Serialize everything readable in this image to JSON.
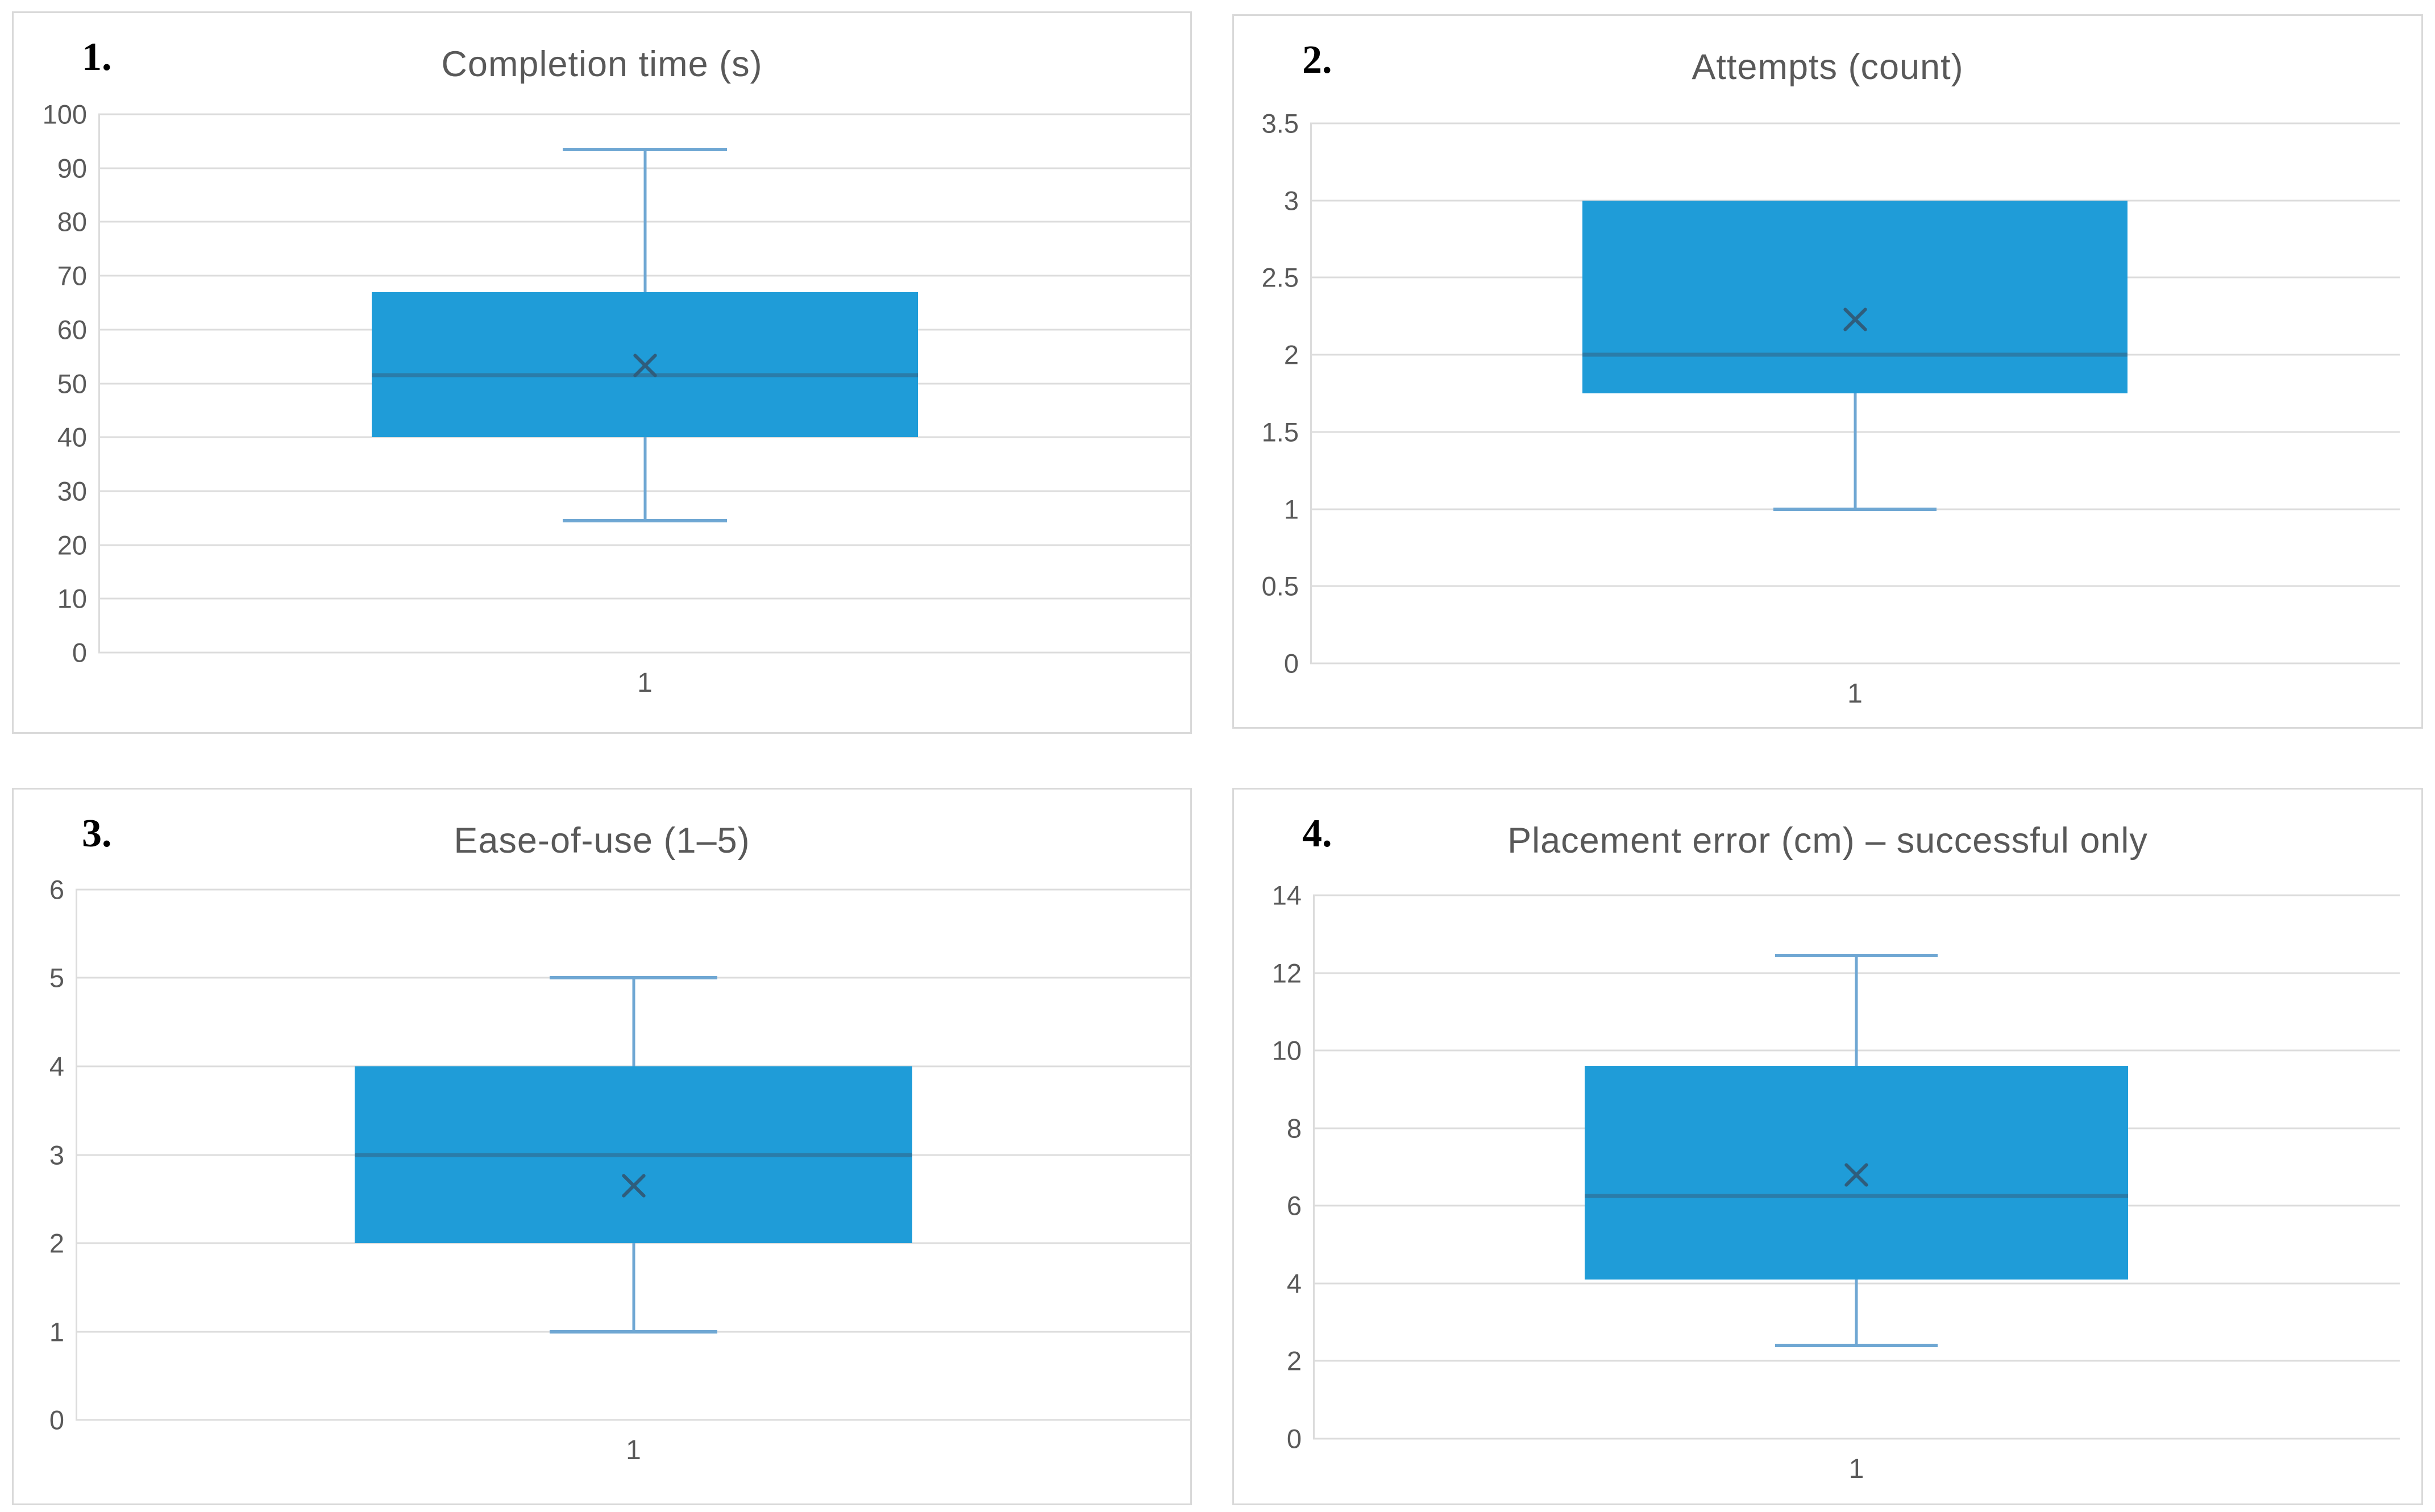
{
  "figure": {
    "background": "#ffffff",
    "colors": {
      "box_fill": "#1f9cd8",
      "whisker": "#6fa7d3",
      "median_line": "#2a7ca9",
      "mean_marker": "#2f5d7c",
      "gridline": "#dcdcdc",
      "panel_border": "#d9d9d9",
      "text": "#595959",
      "corner_label": "#000000"
    }
  },
  "chart_data": [
    {
      "type": "box",
      "corner_label": "1.",
      "title": "Completion time (s)",
      "categories": [
        "1"
      ],
      "x_category": "1",
      "ylim": [
        0,
        100
      ],
      "yticks": [
        "100",
        "90",
        "80",
        "70",
        "60",
        "50",
        "40",
        "30",
        "20",
        "10",
        "0"
      ],
      "grid": true,
      "box": {
        "min": 24.5,
        "q1": 40,
        "median": 51.5,
        "q3": 67,
        "max": 93.5,
        "mean": 53.3
      }
    },
    {
      "type": "box",
      "corner_label": "2.",
      "title": "Attempts (count)",
      "categories": [
        "1"
      ],
      "x_category": "1",
      "ylim": [
        0,
        3.5
      ],
      "yticks": [
        "3.5",
        "3",
        "2.5",
        "2",
        "1.5",
        "1",
        "0.5",
        "0"
      ],
      "grid": true,
      "box": {
        "min": 1,
        "q1": 1.75,
        "median": 2,
        "q3": 3,
        "max": 3,
        "mean": 2.23
      }
    },
    {
      "type": "box",
      "corner_label": "3.",
      "title": "Ease-of-use (1–5)",
      "categories": [
        "1"
      ],
      "x_category": "1",
      "ylim": [
        0,
        6
      ],
      "yticks": [
        "6",
        "5",
        "4",
        "3",
        "2",
        "1",
        "0"
      ],
      "grid": true,
      "box": {
        "min": 1,
        "q1": 2,
        "median": 3,
        "q3": 4,
        "max": 5,
        "mean": 2.65
      }
    },
    {
      "type": "box",
      "corner_label": "4.",
      "title": "Placement error (cm) – successful only",
      "categories": [
        "1"
      ],
      "x_category": "1",
      "ylim": [
        0,
        14
      ],
      "yticks": [
        "14",
        "12",
        "10",
        "8",
        "6",
        "4",
        "2",
        "0"
      ],
      "grid": true,
      "box": {
        "min": 2.4,
        "q1": 4.1,
        "median": 6.25,
        "q3": 9.6,
        "max": 12.45,
        "mean": 6.8
      }
    }
  ]
}
